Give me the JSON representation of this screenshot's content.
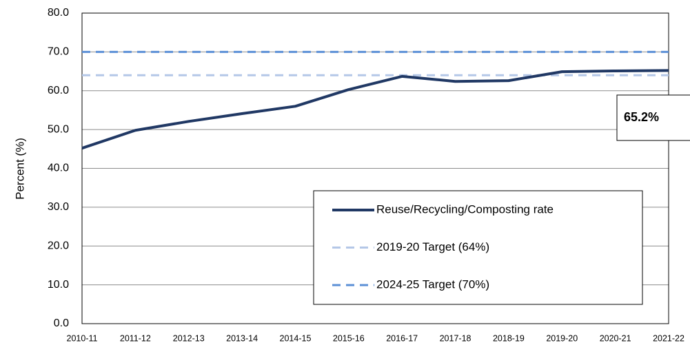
{
  "chart_data": {
    "type": "line",
    "y_label": "Percent (%)",
    "categories": [
      "2010-11",
      "2011-12",
      "2012-13",
      "2013-14",
      "2014-15",
      "2015-16",
      "2016-17",
      "2017-18",
      "2018-19",
      "2019-20",
      "2020-21",
      "2021-22"
    ],
    "series": [
      {
        "name": "Reuse/Recycling/Composting rate",
        "color": "#203864",
        "style": "solid",
        "values": [
          45.2,
          49.8,
          52.1,
          54.1,
          56.0,
          60.3,
          63.7,
          62.4,
          62.6,
          64.9,
          65.1,
          65.2
        ]
      },
      {
        "name": "2019-20 Target (64%)",
        "color": "#b4c7e7",
        "style": "dashed",
        "values": [
          64,
          64,
          64,
          64,
          64,
          64,
          64,
          64,
          64,
          64,
          64,
          64
        ]
      },
      {
        "name": "2024-25 Target (70%)",
        "color": "#5b8fd6",
        "style": "dashed",
        "values": [
          70,
          70,
          70,
          70,
          70,
          70,
          70,
          70,
          70,
          70,
          70,
          70
        ]
      }
    ],
    "annotation": "65.2%",
    "ylim": [
      0,
      80
    ],
    "yticks": [
      {
        "value": 0,
        "label": "0.0"
      },
      {
        "value": 10,
        "label": "10.0"
      },
      {
        "value": 20,
        "label": "20.0"
      },
      {
        "value": 30,
        "label": "30.0"
      },
      {
        "value": 40,
        "label": "40.0"
      },
      {
        "value": 50,
        "label": "50.0"
      },
      {
        "value": 60,
        "label": "60.0"
      },
      {
        "value": 70,
        "label": "70.0"
      },
      {
        "value": 80,
        "label": "80.0"
      }
    ],
    "grid": true
  }
}
